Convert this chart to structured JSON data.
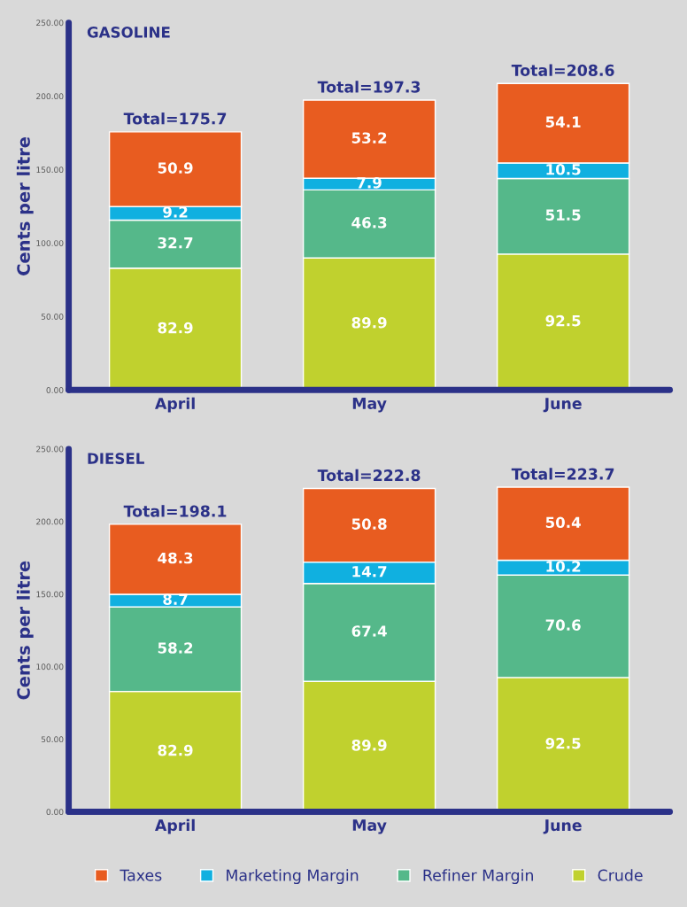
{
  "chart_data": [
    {
      "type": "bar",
      "title": "GASOLINE",
      "ylabel": "Cents per litre",
      "categories": [
        "April",
        "May",
        "June"
      ],
      "stacked": true,
      "data_labels": true,
      "series": [
        {
          "color": "#c0d12e",
          "values": [
            82.9,
            89.9,
            92.5
          ]
        },
        {
          "color": "#55b88a",
          "values": [
            32.7,
            46.3,
            51.5
          ]
        },
        {
          "color": "#10b0e0",
          "values": [
            9.2,
            7.9,
            10.5
          ]
        },
        {
          "color": "#e85c20",
          "values": [
            50.9,
            53.2,
            54.1
          ]
        }
      ],
      "totals": [
        "Total=175.7",
        "Total=197.3",
        "Total=208.6"
      ],
      "ylim": [
        0,
        250
      ],
      "yticks": [
        {
          "value": 0,
          "label": "0.00"
        },
        {
          "value": 50,
          "label": "50.00"
        },
        {
          "value": 100,
          "label": "100.00"
        },
        {
          "value": 150,
          "label": "150.00"
        },
        {
          "value": 200,
          "label": "200.00"
        },
        {
          "value": 250,
          "label": "250.00"
        }
      ],
      "grid": false,
      "legend": false
    },
    {
      "type": "bar",
      "title": "DIESEL",
      "ylabel": "Cents per litre",
      "categories": [
        "April",
        "May",
        "June"
      ],
      "stacked": true,
      "data_labels": true,
      "series": [
        {
          "name": "Crude",
          "color": "#c0d12e",
          "values": [
            82.9,
            89.9,
            92.5
          ]
        },
        {
          "name": "Refiner Margin",
          "color": "#55b88a",
          "values": [
            58.2,
            67.4,
            70.6
          ]
        },
        {
          "name": "Marketing Margin",
          "color": "#10b0e0",
          "values": [
            8.7,
            14.7,
            10.2
          ]
        },
        {
          "name": "Taxes",
          "color": "#e85c20",
          "values": [
            48.3,
            50.8,
            50.4
          ]
        }
      ],
      "totals": [
        "Total=198.1",
        "Total=222.8",
        "Total=223.7"
      ],
      "ylim": [
        0,
        250
      ],
      "yticks": [
        {
          "value": 0,
          "label": "0.00"
        },
        {
          "value": 50,
          "label": "50.00"
        },
        {
          "value": 100,
          "label": "100.00"
        },
        {
          "value": 150,
          "label": "150.00"
        },
        {
          "value": 200,
          "label": "200.00"
        },
        {
          "value": 250,
          "label": "250.00"
        }
      ],
      "grid": false,
      "legend": "bottom"
    }
  ]
}
